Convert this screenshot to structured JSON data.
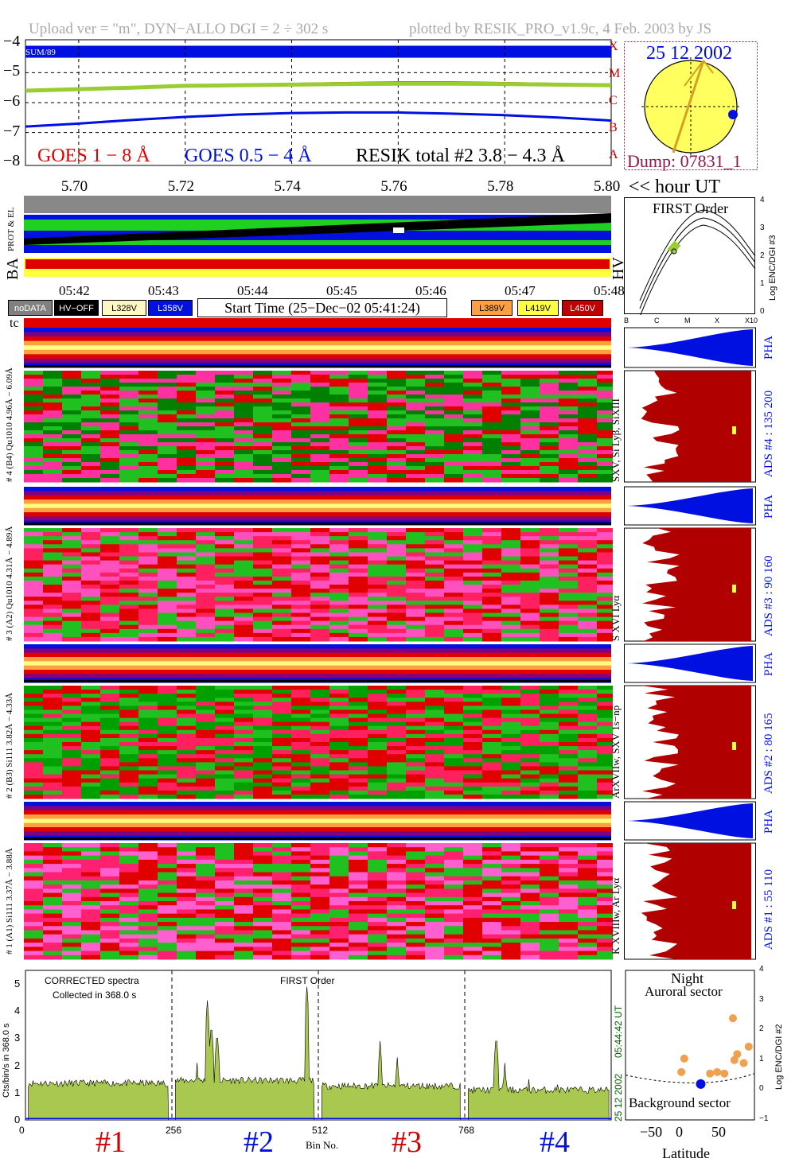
{
  "header": {
    "left": "Upload ver = \"m\", DYN−ALLO DGI =   2 ÷ 302 s",
    "right": "plotted by RESIK_PRO_v1.9c, 4 Feb. 2003 by JS"
  },
  "goes": {
    "y_ticks": [
      "−4",
      "−5",
      "−6",
      "−7",
      "−8"
    ],
    "x_ticks": [
      "5.70",
      "5.72",
      "5.74",
      "5.76",
      "5.78",
      "5.80"
    ],
    "x_unit": "<< hour UT",
    "class_letters": [
      "X",
      "M",
      "C",
      "B",
      "A"
    ],
    "legend_goes1": "GOES 1 − 8 Å",
    "legend_goes2": "GOES 0.5 − 4 Å",
    "legend_resik": "RESIK total #2  3.8 − 4.3 Å",
    "corner_label": "SUM/89",
    "colors": {
      "goes1": "#e00000",
      "goes2": "#0010e0",
      "resik": "#9acd32"
    }
  },
  "sun": {
    "date": "25 12 2002",
    "dump": "Dump: 07831_1"
  },
  "status": {
    "prot_label": "PROT & EL",
    "ba_label": "BA",
    "hv_label": "HV",
    "time_ticks": [
      "05:42",
      "05:43",
      "05:44",
      "05:45",
      "05:46",
      "05:47",
      "05:48"
    ],
    "legend": [
      {
        "label": "noDATA",
        "bg": "#808080",
        "fg": "#ffffff"
      },
      {
        "label": "HV−OFF",
        "bg": "#000000",
        "fg": "#ffffff"
      },
      {
        "label": "L328V",
        "bg": "#fff8c0",
        "fg": "#000000"
      },
      {
        "label": "L358V",
        "bg": "#0010e0",
        "fg": "#ffffff"
      },
      {
        "label": "L389V",
        "bg": "#ffa040",
        "fg": "#000000"
      },
      {
        "label": "L419V",
        "bg": "#ffff40",
        "fg": "#000000"
      },
      {
        "label": "L450V",
        "bg": "#c00000",
        "fg": "#ffffff"
      }
    ],
    "start_time": "Start Time (25−Dec−02 05:41:24)"
  },
  "first_order": {
    "title": "FIRST Order",
    "x_ticks": [
      "B",
      "C",
      "M",
      "X",
      "X10"
    ],
    "y_ticks": [
      "0",
      "1",
      "2",
      "3",
      "4"
    ],
    "ylabel": "Log ENC/DGI #3"
  },
  "channels": {
    "tc_label": "tc",
    "rows": [
      {
        "pha_left": "# 4 (B4) − 6.09Å",
        "main_left": "# 4 (B4) Qu1010 4.96Å − 6.09Å",
        "right_ion": "SXV, Si Lyβ, SiXIII",
        "pha_right": "PHA",
        "ads": "ADS #4 :   135 200"
      },
      {
        "pha_left": "# 3 (A2) − 4.89Å",
        "main_left": "# 3 (A2) Qu1010  4.31Å − 4.89Å",
        "right_ion": "S XVI Lyα",
        "pha_right": "PHA",
        "ads": "ADS #3 :   90 160"
      },
      {
        "pha_left": "# 2 (B3) − 4.33Å",
        "main_left": "# 2 (B3) Si111  3.82Å − 4.33Å",
        "right_ion": "ArXVIIw, SXV 1s−np",
        "pha_right": "PHA",
        "ads": "ADS #2 :   80 165"
      },
      {
        "pha_left": "# 1 (A1) − 3.88Å",
        "main_left": "# 1 (A1) Si111  3.37Å − 3.88Å",
        "right_ion": "K XVIIIw, Ar Lyα",
        "pha_right": "PHA",
        "ads": "ADS #1 :   55 110"
      }
    ]
  },
  "spectrum": {
    "title": "CORRECTED spectra",
    "collected": "Collected in   368.0 s",
    "first_order": "FIRST Order",
    "ylabel": "Cts/bin/s in   368.0 s",
    "xlabel": "Bin No.",
    "x_ticks": [
      "0",
      "256",
      "512",
      "768"
    ],
    "y_ticks": [
      "0",
      "1",
      "2",
      "3",
      "4",
      "5"
    ],
    "right_time": "05:44:42 UT",
    "right_date": "25 12 2002",
    "channel_labels": [
      {
        "label": "#1",
        "color": "#d00000"
      },
      {
        "label": "#2",
        "color": "#0010e0"
      },
      {
        "label": "#3",
        "color": "#d00000"
      },
      {
        "label": "#4",
        "color": "#0010e0"
      }
    ]
  },
  "latitude": {
    "night": "Night",
    "auroral": "Auroral sector",
    "background": "Background sector",
    "xlabel": "Latitude",
    "x_ticks": [
      "−50",
      "0",
      "50"
    ],
    "y_ticks": [
      "−1",
      "0",
      "1",
      "2",
      "3",
      "4"
    ],
    "ylabel": "Log ENC/DGI #2"
  },
  "chart_data": [
    {
      "type": "line",
      "title": "",
      "x": [
        5.69,
        5.7,
        5.71,
        5.72,
        5.73,
        5.74,
        5.75,
        5.76,
        5.77,
        5.78,
        5.79,
        5.8
      ],
      "series": [
        {
          "name": "GOES 1 − 8 Å",
          "values": [
            -5.58,
            -5.55,
            -5.5,
            -5.45,
            -5.42,
            -5.38,
            -5.35,
            -5.33,
            -5.33,
            -5.35,
            -5.38,
            -5.42
          ]
        },
        {
          "name": "GOES 0.5 − 4 Å",
          "values": [
            -6.8,
            -6.7,
            -6.58,
            -6.48,
            -6.4,
            -6.35,
            -6.33,
            -6.33,
            -6.37,
            -6.42,
            -6.5,
            -6.6
          ]
        },
        {
          "name": "RESIK total #2  3.8 − 4.3 Å",
          "values": [
            -5.6,
            -5.55,
            -5.5,
            -5.44,
            -5.42,
            -5.4,
            -5.38,
            -5.37,
            -5.37,
            -5.38,
            -5.4,
            -5.42
          ]
        }
      ],
      "xlim": [
        5.69,
        5.8
      ],
      "ylim": [
        -8.1,
        -3.9
      ],
      "grid": true
    },
    {
      "type": "area",
      "title": "CORRECTED spectra",
      "xlabel": "Bin No.",
      "ylabel": "Cts/bin/s in   368.0 s",
      "xlim": [
        0,
        1024
      ],
      "ylim": [
        0,
        5.5
      ],
      "segments": [
        {
          "from": 5,
          "to": 250,
          "level": 1.35
        },
        {
          "from": 262,
          "to": 505,
          "level": 1.45
        },
        {
          "from": 518,
          "to": 760,
          "level": 1.25
        },
        {
          "from": 774,
          "to": 1020,
          "level": 1.1
        }
      ],
      "peaks": [
        {
          "bin": 318,
          "value": 4.4
        },
        {
          "bin": 325,
          "value": 3.6
        },
        {
          "bin": 335,
          "value": 3.3
        },
        {
          "bin": 300,
          "value": 2.1
        },
        {
          "bin": 492,
          "value": 4.9
        },
        {
          "bin": 620,
          "value": 2.9
        },
        {
          "bin": 650,
          "value": 2.3
        },
        {
          "bin": 823,
          "value": 3.2
        },
        {
          "bin": 838,
          "value": 2.1
        },
        {
          "bin": 880,
          "value": 1.5
        },
        {
          "bin": 930,
          "value": 1.3
        }
      ]
    },
    {
      "type": "scatter",
      "xlabel": "Latitude",
      "ylabel": "Log ENC/DGI #2",
      "xlim": [
        -90,
        90
      ],
      "ylim": [
        -1,
        4
      ],
      "series": [
        {
          "color": "#f0a050",
          "x": [
            -12,
            -8,
            28,
            38,
            48,
            60,
            62,
            66,
            75,
            82
          ],
          "y": [
            0.6,
            1.05,
            0.55,
            0.6,
            0.55,
            2.4,
            1.0,
            1.2,
            0.9,
            1.45
          ]
        },
        {
          "color": "#0010e0",
          "x": [
            15
          ],
          "y": [
            0.2
          ]
        }
      ]
    }
  ]
}
